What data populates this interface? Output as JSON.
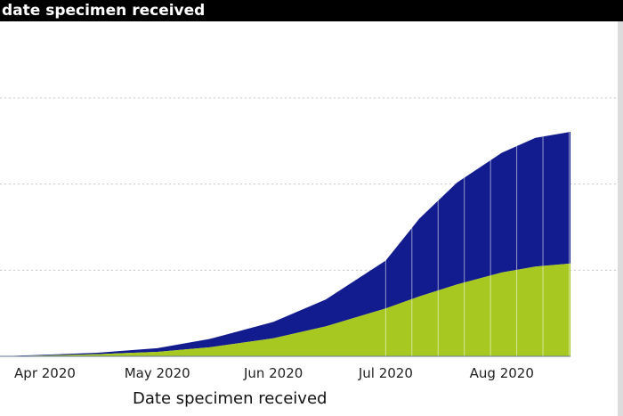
{
  "header": {
    "title": "date specimen received"
  },
  "colors": {
    "series_upper": "#121c8e",
    "series_lower": "#a6c820",
    "grid": "#c8c8c8",
    "background": "#ffffff",
    "title_bar": "#000000"
  },
  "chart_data": {
    "type": "area",
    "stacked": true,
    "cumulative": true,
    "title": "date specimen received",
    "xlabel": "Date specimen received",
    "ylabel": "",
    "xlim": [
      "2020-03-20",
      "2020-08-31"
    ],
    "x_ticks": [
      "2020-04-01",
      "2020-05-01",
      "2020-06-01",
      "2020-07-01",
      "2020-08-01"
    ],
    "x_tick_labels": [
      "Apr 2020",
      "May 2020",
      "Jun 2020",
      "Jul 2020",
      "Aug 2020"
    ],
    "y_gridlines": 4,
    "ylim": [
      0,
      1
    ],
    "grid": true,
    "legend": "none",
    "x": [
      "2020-03-20",
      "2020-04-01",
      "2020-04-15",
      "2020-05-01",
      "2020-05-15",
      "2020-06-01",
      "2020-06-15",
      "2020-07-01",
      "2020-07-10",
      "2020-07-20",
      "2020-08-01",
      "2020-08-10",
      "2020-08-20",
      "2020-08-27"
    ],
    "series": [
      {
        "values": [
          0.0,
          0.003,
          0.007,
          0.015,
          0.03,
          0.06,
          0.1,
          0.16,
          0.2,
          0.24,
          0.28,
          0.3,
          0.31,
          0.32
        ]
      },
      {
        "values": [
          0.0,
          0.002,
          0.005,
          0.012,
          0.028,
          0.055,
          0.09,
          0.16,
          0.26,
          0.34,
          0.4,
          0.43,
          0.44,
          0.44
        ]
      }
    ]
  }
}
